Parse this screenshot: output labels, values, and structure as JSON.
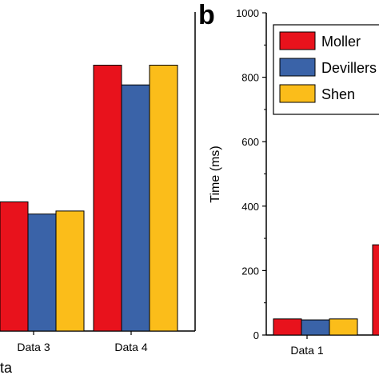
{
  "chart_data": [
    {
      "panel": "",
      "type": "bar",
      "categories": [
        "Data 3",
        "Data 4"
      ],
      "series": [
        {
          "name": "Moller",
          "color": "#e8121c",
          "values": [
            425,
            875
          ]
        },
        {
          "name": "Devillers",
          "color": "#3a63a8",
          "values": [
            385,
            810
          ]
        },
        {
          "name": "Shen",
          "color": "#fbbd1a",
          "values": [
            395,
            875
          ]
        }
      ],
      "xlabel": "ata",
      "ylabel": "",
      "grid": false
    },
    {
      "panel": "b",
      "type": "bar",
      "categories": [
        "Data 1",
        ""
      ],
      "series": [
        {
          "name": "Moller",
          "color": "#e8121c",
          "values": [
            50,
            280
          ]
        },
        {
          "name": "Devillers",
          "color": "#3a63a8",
          "values": [
            47,
            null
          ]
        },
        {
          "name": "Shen",
          "color": "#fbbd1a",
          "values": [
            50,
            null
          ]
        }
      ],
      "ylabel": "Time (ms)",
      "ylim": [
        0,
        1000
      ],
      "yticks": [
        0,
        200,
        400,
        600,
        800,
        1000
      ],
      "legend": "top-right",
      "grid": false
    }
  ]
}
